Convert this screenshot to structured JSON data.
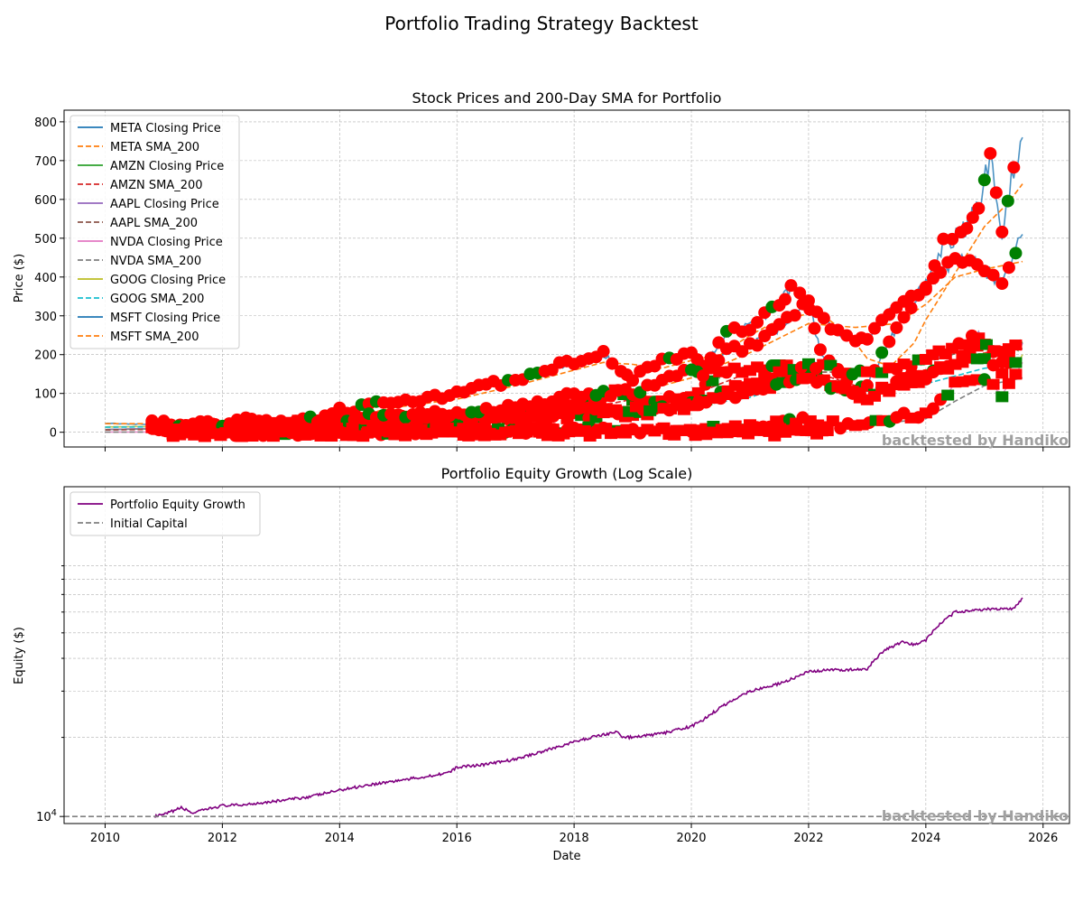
{
  "figure": {
    "suptitle": "Portfolio Trading Strategy Backtest"
  },
  "colors": {
    "buy": "#008000",
    "sell": "#ff0000",
    "equity": "#800080",
    "initial": "#808080",
    "grid": "#b0b0b0",
    "watermark": "#a0a0a0"
  },
  "chart_data": [
    {
      "type": "line",
      "title": "Stock Prices and 200-Day SMA for Portfolio",
      "xlabel": "",
      "ylabel": "Price ($)",
      "xlim": [
        2009.3,
        2026.45
      ],
      "ylim": [
        -38,
        830
      ],
      "xticks": [
        2010,
        2012,
        2014,
        2016,
        2018,
        2020,
        2022,
        2024,
        2026
      ],
      "yticks": [
        0,
        100,
        200,
        300,
        400,
        500,
        600,
        700,
        800
      ],
      "grid": true,
      "legend_position": "top-left",
      "watermark": "backtested by Handiko",
      "markers": {
        "buy": "green circles / triangles",
        "sell": "red circles / squares / triangles"
      },
      "series": [
        {
          "name": "META Closing Price",
          "color": "#1f77b4",
          "dash": false,
          "alpha": 0.8,
          "x": [
            2012.4,
            2012.7,
            2013.0,
            2013.5,
            2014.0,
            2014.5,
            2015.0,
            2015.5,
            2016.0,
            2016.5,
            2017.0,
            2017.5,
            2018.0,
            2018.5,
            2018.8,
            2019.0,
            2019.5,
            2020.0,
            2020.2,
            2020.6,
            2021.0,
            2021.5,
            2021.7,
            2022.0,
            2022.2,
            2022.5,
            2022.8,
            2023.0,
            2023.5,
            2024.0,
            2024.3,
            2024.6,
            2024.9,
            2025.1,
            2025.3,
            2025.5,
            2025.65
          ],
          "y": [
            28,
            20,
            26,
            26,
            55,
            68,
            78,
            88,
            100,
            120,
            135,
            165,
            180,
            200,
            160,
            140,
            185,
            205,
            170,
            260,
            270,
            330,
            370,
            330,
            210,
            170,
            100,
            125,
            270,
            380,
            490,
            510,
            580,
            720,
            520,
            680,
            760
          ]
        },
        {
          "name": "META SMA_200",
          "color": "#ff7f0e",
          "dash": true,
          "alpha": 1,
          "x": [
            2013.0,
            2014.0,
            2015.0,
            2016.0,
            2017.0,
            2018.0,
            2018.5,
            2019.0,
            2019.5,
            2020.0,
            2020.5,
            2021.0,
            2021.5,
            2022.0,
            2022.3,
            2022.7,
            2023.0,
            2023.4,
            2023.8,
            2024.0,
            2024.5,
            2025.0,
            2025.4,
            2025.65
          ],
          "y": [
            22,
            35,
            65,
            85,
            120,
            160,
            180,
            175,
            165,
            185,
            200,
            250,
            290,
            305,
            295,
            250,
            190,
            170,
            230,
            290,
            410,
            530,
            590,
            640
          ]
        },
        {
          "name": "AMZN Closing Price",
          "color": "#2ca02c",
          "dash": false,
          "alpha": 0.8,
          "x": [
            2010.0,
            2011.0,
            2012.0,
            2013.0,
            2014.0,
            2015.0,
            2016.0,
            2017.0,
            2018.0,
            2018.7,
            2019.0,
            2020.0,
            2020.6,
            2021.0,
            2021.5,
            2022.0,
            2022.5,
            2023.0,
            2023.5,
            2024.0,
            2024.5,
            2025.0,
            2025.3,
            2025.65
          ],
          "y": [
            7,
            9,
            10,
            14,
            18,
            20,
            30,
            40,
            70,
            100,
            80,
            95,
            160,
            160,
            170,
            155,
            115,
            90,
            130,
            155,
            180,
            230,
            190,
            230
          ]
        },
        {
          "name": "AMZN SMA_200",
          "color": "#d62728",
          "dash": true,
          "alpha": 1,
          "x": [
            2010.0,
            2012.0,
            2014.0,
            2016.0,
            2018.0,
            2019.0,
            2020.0,
            2021.0,
            2022.0,
            2023.0,
            2024.0,
            2025.0,
            2025.65
          ],
          "y": [
            6,
            9,
            17,
            27,
            55,
            85,
            95,
            155,
            160,
            110,
            140,
            205,
            215
          ]
        },
        {
          "name": "AAPL Closing Price",
          "color": "#9467bd",
          "dash": false,
          "alpha": 0.8,
          "x": [
            2010.0,
            2012.0,
            2014.0,
            2016.0,
            2018.0,
            2019.0,
            2020.0,
            2021.0,
            2022.0,
            2023.0,
            2024.0,
            2024.9,
            2025.3,
            2025.65
          ],
          "y": [
            7,
            14,
            20,
            25,
            42,
            45,
            70,
            130,
            175,
            150,
            185,
            250,
            200,
            230
          ]
        },
        {
          "name": "AAPL SMA_200",
          "color": "#8c564b",
          "dash": true,
          "alpha": 1,
          "x": [
            2010.0,
            2012.0,
            2014.0,
            2016.0,
            2018.0,
            2019.0,
            2020.0,
            2021.0,
            2022.0,
            2023.0,
            2024.0,
            2025.0,
            2025.65
          ],
          "y": [
            6,
            12,
            19,
            24,
            38,
            42,
            60,
            115,
            155,
            155,
            180,
            225,
            215
          ]
        },
        {
          "name": "NVDA Closing Price",
          "color": "#e377c2",
          "dash": false,
          "alpha": 0.8,
          "x": [
            2010.0,
            2014.0,
            2016.0,
            2018.0,
            2019.0,
            2020.0,
            2021.0,
            2021.9,
            2022.8,
            2023.5,
            2024.0,
            2024.5,
            2025.0,
            2025.3,
            2025.65
          ],
          "y": [
            0.5,
            0.5,
            1,
            5,
            4,
            6,
            13,
            30,
            13,
            40,
            50,
            120,
            140,
            100,
            180
          ]
        },
        {
          "name": "NVDA SMA_200",
          "color": "#7f7f7f",
          "dash": true,
          "alpha": 1,
          "x": [
            2010.0,
            2016.0,
            2018.0,
            2020.0,
            2021.0,
            2022.0,
            2023.0,
            2024.0,
            2024.5,
            2025.0,
            2025.65
          ],
          "y": [
            0.4,
            0.8,
            4,
            5,
            11,
            22,
            18,
            35,
            80,
            120,
            140
          ]
        },
        {
          "name": "GOOG Closing Price",
          "color": "#bcbd22",
          "dash": false,
          "alpha": 0.8,
          "x": [
            2010.0,
            2012.0,
            2014.0,
            2016.0,
            2018.0,
            2020.0,
            2021.0,
            2021.9,
            2022.5,
            2023.0,
            2023.5,
            2024.0,
            2024.5,
            2025.0,
            2025.3,
            2025.65
          ],
          "y": [
            14,
            16,
            28,
            37,
            55,
            70,
            105,
            145,
            115,
            90,
            120,
            140,
            175,
            195,
            160,
            200
          ]
        },
        {
          "name": "GOOG SMA_200",
          "color": "#17becf",
          "dash": true,
          "alpha": 1,
          "x": [
            2010.0,
            2012.0,
            2014.0,
            2016.0,
            2018.0,
            2020.0,
            2021.0,
            2022.0,
            2023.0,
            2024.0,
            2025.0,
            2025.65
          ],
          "y": [
            13,
            15,
            25,
            35,
            50,
            65,
            90,
            140,
            105,
            125,
            165,
            175
          ]
        },
        {
          "name": "MSFT Closing Price",
          "color": "#1f77b4",
          "dash": false,
          "alpha": 0.8,
          "x": [
            2010.0,
            2011.0,
            2012.0,
            2013.0,
            2014.0,
            2015.0,
            2016.0,
            2017.0,
            2018.0,
            2019.0,
            2020.0,
            2020.2,
            2020.6,
            2021.0,
            2021.5,
            2021.9,
            2022.5,
            2022.8,
            2023.0,
            2023.5,
            2024.0,
            2024.5,
            2025.0,
            2025.3,
            2025.65
          ],
          "y": [
            23,
            20,
            23,
            28,
            37,
            45,
            52,
            65,
            95,
            105,
            160,
            140,
            210,
            220,
            270,
            330,
            260,
            230,
            240,
            330,
            370,
            450,
            420,
            380,
            510
          ]
        },
        {
          "name": "MSFT SMA_200",
          "color": "#ff7f0e",
          "dash": true,
          "alpha": 1,
          "x": [
            2010.0,
            2012.0,
            2014.0,
            2016.0,
            2018.0,
            2019.0,
            2020.0,
            2021.0,
            2022.0,
            2022.8,
            2023.5,
            2024.0,
            2024.5,
            2025.0,
            2025.65
          ],
          "y": [
            22,
            22,
            32,
            48,
            80,
            100,
            140,
            205,
            280,
            270,
            280,
            330,
            400,
            420,
            440
          ]
        }
      ]
    },
    {
      "type": "line",
      "title": "Portfolio Equity Growth (Log Scale)",
      "xlabel": "Date",
      "ylabel": "Equity ($)",
      "yscale": "log",
      "xlim": [
        2009.3,
        2026.45
      ],
      "ylim": [
        9400,
        180000
      ],
      "xticks": [
        2010,
        2012,
        2014,
        2016,
        2018,
        2020,
        2022,
        2024,
        2026
      ],
      "ytick_labels": [
        "10",
        "4"
      ],
      "grid": true,
      "legend_position": "top-left",
      "watermark": "backtested by Handiko",
      "series": [
        {
          "name": "Portfolio Equity Growth",
          "color": "#800080",
          "x": [
            2010.85,
            2011.0,
            2011.3,
            2011.5,
            2011.7,
            2012.0,
            2012.3,
            2012.6,
            2013.0,
            2013.5,
            2014.0,
            2014.5,
            2015.0,
            2015.5,
            2015.9,
            2016.0,
            2016.5,
            2017.0,
            2017.5,
            2018.0,
            2018.4,
            2018.75,
            2018.8,
            2019.0,
            2019.5,
            2020.0,
            2020.2,
            2020.5,
            2020.8,
            2021.0,
            2021.5,
            2021.8,
            2022.0,
            2022.3,
            2022.5,
            2023.0,
            2023.1,
            2023.3,
            2023.6,
            2023.8,
            2024.0,
            2024.2,
            2024.5,
            2024.8,
            2025.0,
            2025.3,
            2025.5,
            2025.65
          ],
          "y": [
            10000,
            10150,
            10800,
            10300,
            10600,
            11000,
            11050,
            11250,
            11500,
            11900,
            12600,
            13200,
            13700,
            14200,
            14800,
            15400,
            15800,
            16500,
            17800,
            19200,
            20300,
            21000,
            20100,
            20000,
            20700,
            22000,
            23300,
            26000,
            28500,
            30000,
            32000,
            34000,
            35500,
            36000,
            36200,
            36200,
            39000,
            43000,
            46000,
            45000,
            47000,
            53000,
            60000,
            61000,
            61500,
            61500,
            62000,
            68000
          ]
        },
        {
          "name": "Initial Capital",
          "color": "#808080",
          "dash": true,
          "x": [
            2009.3,
            2026.45
          ],
          "y": [
            10000,
            10000
          ]
        }
      ]
    }
  ]
}
